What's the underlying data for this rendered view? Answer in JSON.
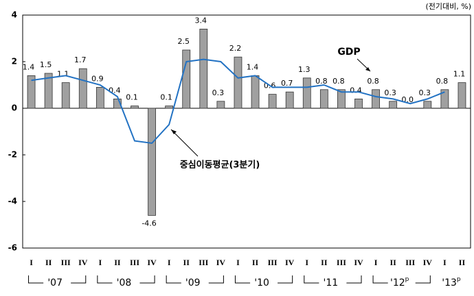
{
  "chart_data": {
    "type": "bar_line",
    "unit_label": "(전기대비, %)",
    "categories": [
      "I",
      "II",
      "III",
      "IV",
      "I",
      "II",
      "III",
      "IV",
      "I",
      "II",
      "III",
      "IV",
      "I",
      "II",
      "III",
      "IV",
      "I",
      "II",
      "III",
      "IV",
      "I",
      "II",
      "III",
      "IV",
      "I",
      "II"
    ],
    "year_groups": [
      "'07",
      "'08",
      "'09",
      "'10",
      "'11",
      "'12",
      "'13"
    ],
    "provisional_mark": "p",
    "series": [
      {
        "name": "GDP",
        "type": "bar",
        "color": "#a0a0a0",
        "values": [
          1.4,
          1.5,
          1.1,
          1.7,
          0.9,
          0.4,
          0.1,
          -4.6,
          0.1,
          2.5,
          3.4,
          0.3,
          2.2,
          1.4,
          0.6,
          0.7,
          1.3,
          0.8,
          0.8,
          0.4,
          0.8,
          0.3,
          0.0,
          0.3,
          0.8,
          1.1
        ],
        "value_labels": [
          "1.4",
          "1.5",
          "1.1",
          "1.7",
          "0.9",
          "0.4",
          "0.1",
          "-4.6",
          "0.1",
          "2.5",
          "3.4",
          "0.3",
          "2.2",
          "1.4",
          "0.6",
          "0.7",
          "1.3",
          "0.8",
          "0.8",
          "0.4",
          "0.8",
          "0.3",
          "0.0",
          "0.3",
          "0.8",
          "1.1"
        ]
      },
      {
        "name": "중심이동평균(3분기)",
        "type": "line",
        "color": "#2272c3",
        "values": [
          1.2,
          1.3,
          1.4,
          1.2,
          1.0,
          0.5,
          -1.4,
          -1.5,
          -0.7,
          2.0,
          2.1,
          2.0,
          1.3,
          1.4,
          0.9,
          0.9,
          0.9,
          1.0,
          0.7,
          0.7,
          0.5,
          0.4,
          0.2,
          0.4,
          0.7,
          null
        ]
      }
    ],
    "ylim": [
      -6,
      4
    ],
    "yticks": [
      4,
      2,
      0,
      -2,
      -4,
      -6
    ]
  }
}
